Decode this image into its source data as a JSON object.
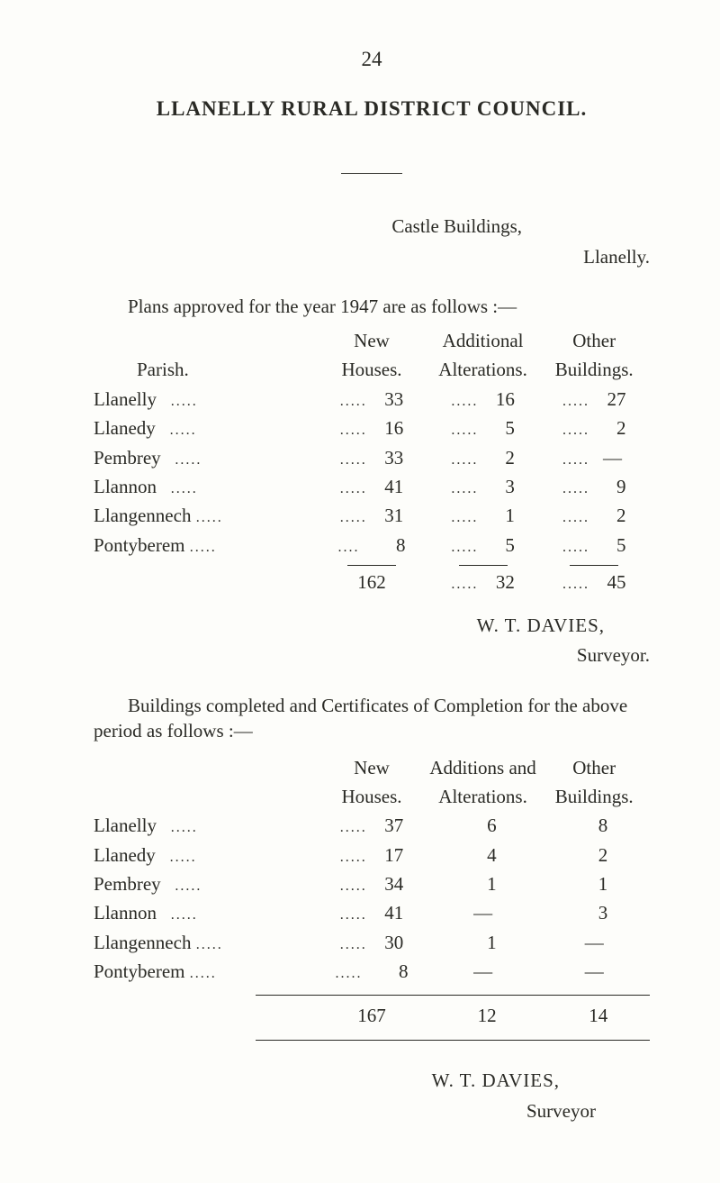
{
  "page_number": "24",
  "title": "LLANELLY RURAL DISTRICT COUNCIL.",
  "castle_line": "Castle Buildings,",
  "llanelly_line": "Llanelly.",
  "intro1": "Plans approved for the year 1947 are as follows :—",
  "table1": {
    "head": {
      "parish": "Parish.",
      "new1": "New",
      "new2": "Houses.",
      "add1": "Additional",
      "add2": "Alterations.",
      "oth1": "Other",
      "oth2": "Buildings."
    },
    "rows": [
      {
        "name": "Llanelly",
        "a": "33",
        "b": "16",
        "c": "27"
      },
      {
        "name": "Llanedy",
        "a": "16",
        "b": "5",
        "c": "2"
      },
      {
        "name": "Pembrey",
        "a": "33",
        "b": "2",
        "c": "—"
      },
      {
        "name": "Llannon",
        "a": "41",
        "b": "3",
        "c": "9"
      },
      {
        "name": "Llangennech",
        "a": "31",
        "b": "1",
        "c": "2"
      },
      {
        "name": "Pontyberem",
        "a": "8",
        "b": "5",
        "c": "5"
      }
    ],
    "total": {
      "a": "162",
      "b": "32",
      "c": "45"
    }
  },
  "signature1": "W. T. DAVIES,",
  "surveyor1": "Surveyor.",
  "intro2": "Buildings completed and Certificates of Completion for the above period as follows :—",
  "table2": {
    "head": {
      "new1": "New",
      "new2": "Houses.",
      "add1": "Additions and",
      "add2": "Alterations.",
      "oth1": "Other",
      "oth2": "Buildings."
    },
    "rows": [
      {
        "name": "Llanelly",
        "a": "37",
        "b": "6",
        "c": "8"
      },
      {
        "name": "Llanedy",
        "a": "17",
        "b": "4",
        "c": "2"
      },
      {
        "name": "Pembrey",
        "a": "34",
        "b": "1",
        "c": "1"
      },
      {
        "name": "Llannon",
        "a": "41",
        "b": "—",
        "c": "3"
      },
      {
        "name": "Llangennech",
        "a": "30",
        "b": "1",
        "c": "—"
      },
      {
        "name": "Pontyberem",
        "a": "8",
        "b": "—",
        "c": "—"
      }
    ],
    "total": {
      "a": "167",
      "b": "12",
      "c": "14"
    }
  },
  "signature2": "W. T. DAVIES,",
  "surveyor2": "Surveyor"
}
